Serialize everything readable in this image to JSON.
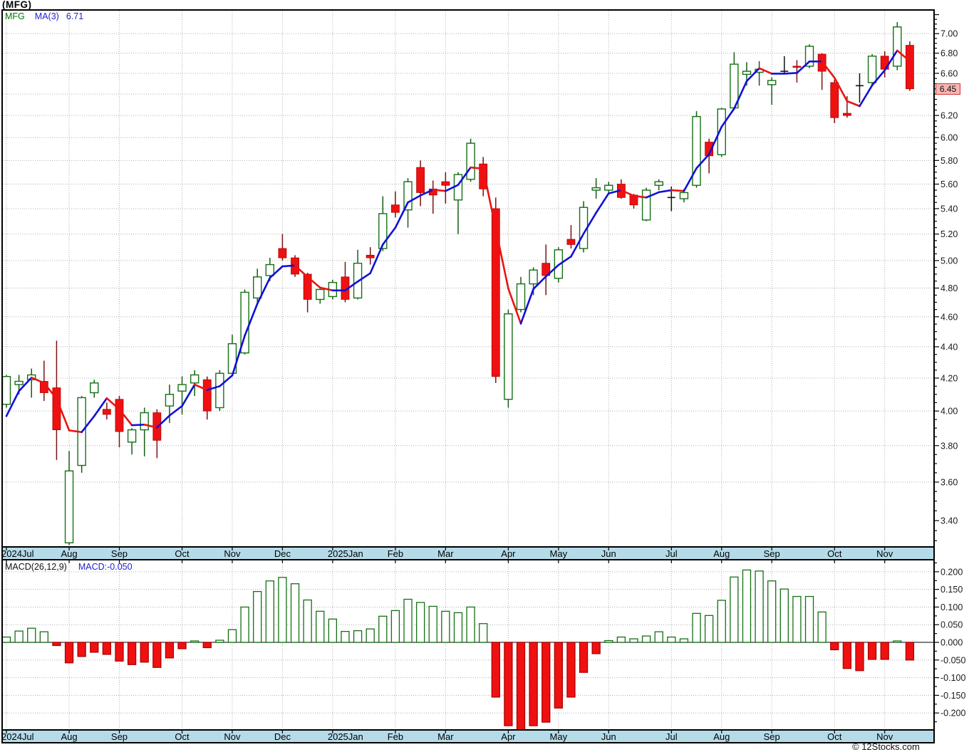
{
  "title": "(MFG)",
  "legend": {
    "symbol": "MFG",
    "ma_label": "MA(3)",
    "ma_value": "6.71"
  },
  "macd_legend": {
    "label": "MACD(26,12,9)",
    "value_label": "MACD:-0.050"
  },
  "price_axis": {
    "current_price": "6.45",
    "labels": [
      {
        "v": 7.0,
        "t": "7.00"
      },
      {
        "v": 6.8,
        "t": "6.80"
      },
      {
        "v": 6.6,
        "t": "6.60"
      },
      {
        "v": 6.2,
        "t": "6.20"
      },
      {
        "v": 6.0,
        "t": "6.00"
      },
      {
        "v": 5.8,
        "t": "5.80"
      },
      {
        "v": 5.6,
        "t": "5.60"
      },
      {
        "v": 5.4,
        "t": "5.40"
      },
      {
        "v": 5.2,
        "t": "5.20"
      },
      {
        "v": 5.0,
        "t": "5.00"
      },
      {
        "v": 4.8,
        "t": "4.80"
      },
      {
        "v": 4.6,
        "t": "4.60"
      },
      {
        "v": 4.4,
        "t": "4.40"
      },
      {
        "v": 4.2,
        "t": "4.20"
      },
      {
        "v": 4.0,
        "t": "4.00"
      },
      {
        "v": 3.8,
        "t": "3.80"
      },
      {
        "v": 3.6,
        "t": "3.60"
      },
      {
        "v": 3.4,
        "t": "3.40"
      }
    ]
  },
  "macd_axis": {
    "labels": [
      {
        "v": 0.2,
        "t": "0.200"
      },
      {
        "v": 0.15,
        "t": "0.150"
      },
      {
        "v": 0.1,
        "t": "0.100"
      },
      {
        "v": 0.05,
        "t": "0.050"
      },
      {
        "v": 0.0,
        "t": "0.000"
      },
      {
        "v": -0.05,
        "t": "-0.050"
      },
      {
        "v": -0.1,
        "t": "-0.100"
      },
      {
        "v": -0.15,
        "t": "-0.150"
      },
      {
        "v": -0.2,
        "t": "-0.200"
      }
    ]
  },
  "footer": {
    "credit": "© 12Stocks.com"
  },
  "colors": {
    "up_border": "#157015",
    "up_fill": "#ffffff",
    "wick_up": "#175c17",
    "down_fill": "#ef1111",
    "down_border": "#b00000",
    "wick_down": "#7a1212",
    "doji": "#111111",
    "ma_up": "#1010d8",
    "ma_down": "#e81414",
    "band": "#b5dbe9",
    "grid": "#b0b0b0",
    "frame": "#000000",
    "text": "#1a1a1a",
    "badge_bg": "#f6b5b3",
    "badge_border": "#cc3333",
    "zero_line": "#333333"
  },
  "chart_data": {
    "type": "candlestick+histogram",
    "timeframe": "weekly",
    "symbol": "MFG",
    "price_scale": "log",
    "price_ylim": [
      3.27,
      7.25
    ],
    "price_gridline_step": 0.2,
    "macd_ylim": [
      -0.248,
      0.234
    ],
    "macd_gridline_step": 0.05,
    "ma_period": 3,
    "ma3_seed": [
      3.97,
      4.12
    ],
    "months": [
      {
        "label": "2024Jul",
        "week": 0
      },
      {
        "label": "Aug",
        "week": 5
      },
      {
        "label": "Sep",
        "week": 9
      },
      {
        "label": "Oct",
        "week": 14
      },
      {
        "label": "Nov",
        "week": 18
      },
      {
        "label": "Dec",
        "week": 22
      },
      {
        "label": "2025Jan",
        "week": 26
      },
      {
        "label": "Feb",
        "week": 31
      },
      {
        "label": "Mar",
        "week": 35
      },
      {
        "label": "Apr",
        "week": 40
      },
      {
        "label": "May",
        "week": 44
      },
      {
        "label": "Jun",
        "week": 48
      },
      {
        "label": "Jul",
        "week": 53
      },
      {
        "label": "Aug",
        "week": 57
      },
      {
        "label": "Sep",
        "week": 61
      },
      {
        "label": "Oct",
        "week": 66
      },
      {
        "label": "Nov",
        "week": 70
      }
    ],
    "candles": [
      [
        4.04,
        4.22,
        4.02,
        4.21,
        "g"
      ],
      [
        4.16,
        4.22,
        4.1,
        4.18,
        "g"
      ],
      [
        4.19,
        4.26,
        4.08,
        4.22,
        "g"
      ],
      [
        4.18,
        4.31,
        4.06,
        4.11,
        "r"
      ],
      [
        4.14,
        4.44,
        3.72,
        3.89,
        "r"
      ],
      [
        3.29,
        3.77,
        3.28,
        3.66,
        "g"
      ],
      [
        3.69,
        4.09,
        3.65,
        4.08,
        "g"
      ],
      [
        4.11,
        4.19,
        4.08,
        4.17,
        "g"
      ],
      [
        4.01,
        4.05,
        3.95,
        3.98,
        "r"
      ],
      [
        4.07,
        4.09,
        3.79,
        3.88,
        "r"
      ],
      [
        3.82,
        3.9,
        3.75,
        3.89,
        "g"
      ],
      [
        3.89,
        4.02,
        3.74,
        3.99,
        "g"
      ],
      [
        3.99,
        4.01,
        3.73,
        3.83,
        "r"
      ],
      [
        4.03,
        4.16,
        3.93,
        4.1,
        "g"
      ],
      [
        4.12,
        4.21,
        3.98,
        4.16,
        "g"
      ],
      [
        4.17,
        4.25,
        4.09,
        4.22,
        "g"
      ],
      [
        4.19,
        4.21,
        3.95,
        4.0,
        "r"
      ],
      [
        4.02,
        4.25,
        4.0,
        4.23,
        "g"
      ],
      [
        4.23,
        4.48,
        4.22,
        4.42,
        "g"
      ],
      [
        4.36,
        4.79,
        4.35,
        4.77,
        "g"
      ],
      [
        4.73,
        4.94,
        4.7,
        4.88,
        "g"
      ],
      [
        4.89,
        5.02,
        4.85,
        4.97,
        "g"
      ],
      [
        5.09,
        5.2,
        5.0,
        5.02,
        "r"
      ],
      [
        5.02,
        5.04,
        4.88,
        4.9,
        "r"
      ],
      [
        4.9,
        4.91,
        4.63,
        4.72,
        "r"
      ],
      [
        4.72,
        4.8,
        4.69,
        4.79,
        "g"
      ],
      [
        4.74,
        4.86,
        4.72,
        4.84,
        "g"
      ],
      [
        4.88,
        4.99,
        4.7,
        4.72,
        "r"
      ],
      [
        4.73,
        5.08,
        4.72,
        4.98,
        "g"
      ],
      [
        5.04,
        5.1,
        4.97,
        5.02,
        "r"
      ],
      [
        5.09,
        5.5,
        5.07,
        5.36,
        "g"
      ],
      [
        5.43,
        5.54,
        5.33,
        5.37,
        "r"
      ],
      [
        5.39,
        5.65,
        5.25,
        5.62,
        "g"
      ],
      [
        5.74,
        5.8,
        5.42,
        5.53,
        "r"
      ],
      [
        5.56,
        5.63,
        5.36,
        5.51,
        "r"
      ],
      [
        5.62,
        5.7,
        5.44,
        5.59,
        "r"
      ],
      [
        5.47,
        5.7,
        5.2,
        5.68,
        "g"
      ],
      [
        5.64,
        5.99,
        5.62,
        5.95,
        "g"
      ],
      [
        5.77,
        5.83,
        5.5,
        5.56,
        "r"
      ],
      [
        5.4,
        5.49,
        4.17,
        4.21,
        "r"
      ],
      [
        4.07,
        4.65,
        4.02,
        4.62,
        "g"
      ],
      [
        4.65,
        4.88,
        4.63,
        4.83,
        "g"
      ],
      [
        4.83,
        4.95,
        4.75,
        4.93,
        "g"
      ],
      [
        4.98,
        5.12,
        4.75,
        4.89,
        "r"
      ],
      [
        4.87,
        5.1,
        4.84,
        5.08,
        "g"
      ],
      [
        5.16,
        5.27,
        5.09,
        5.12,
        "r"
      ],
      [
        5.09,
        5.46,
        5.06,
        5.41,
        "g"
      ],
      [
        5.55,
        5.65,
        5.48,
        5.57,
        "g"
      ],
      [
        5.55,
        5.62,
        5.53,
        5.59,
        "g"
      ],
      [
        5.6,
        5.64,
        5.48,
        5.49,
        "r"
      ],
      [
        5.51,
        5.52,
        5.4,
        5.43,
        "r"
      ],
      [
        5.31,
        5.57,
        5.3,
        5.55,
        "g"
      ],
      [
        5.59,
        5.64,
        5.55,
        5.62,
        "g"
      ],
      [
        5.5,
        5.58,
        5.38,
        5.48,
        "k"
      ],
      [
        5.48,
        5.56,
        5.45,
        5.53,
        "g"
      ],
      [
        5.59,
        6.24,
        5.57,
        6.19,
        "g"
      ],
      [
        5.96,
        5.99,
        5.69,
        5.84,
        "r"
      ],
      [
        5.85,
        6.27,
        5.83,
        6.26,
        "g"
      ],
      [
        6.27,
        6.81,
        6.25,
        6.69,
        "g"
      ],
      [
        6.59,
        6.71,
        6.48,
        6.62,
        "g"
      ],
      [
        6.61,
        6.72,
        6.48,
        6.64,
        "g"
      ],
      [
        6.49,
        6.56,
        6.3,
        6.53,
        "g"
      ],
      [
        6.62,
        6.77,
        6.59,
        6.62,
        "k"
      ],
      [
        6.67,
        6.73,
        6.51,
        6.66,
        "r"
      ],
      [
        6.67,
        6.89,
        6.65,
        6.87,
        "g"
      ],
      [
        6.79,
        6.8,
        6.44,
        6.62,
        "r"
      ],
      [
        6.51,
        6.54,
        6.13,
        6.18,
        "r"
      ],
      [
        6.22,
        6.38,
        6.18,
        6.2,
        "r"
      ],
      [
        6.48,
        6.6,
        6.32,
        6.48,
        "k"
      ],
      [
        6.51,
        6.79,
        6.49,
        6.77,
        "g"
      ],
      [
        6.77,
        6.82,
        6.56,
        6.64,
        "r"
      ],
      [
        6.67,
        7.12,
        6.63,
        7.07,
        "g"
      ],
      [
        6.88,
        6.92,
        6.43,
        6.45,
        "r"
      ]
    ],
    "macd": [
      0.015,
      0.032,
      0.04,
      0.03,
      -0.009,
      -0.058,
      -0.04,
      -0.028,
      -0.034,
      -0.053,
      -0.063,
      -0.056,
      -0.071,
      -0.044,
      -0.018,
      0.003,
      -0.015,
      0.006,
      0.036,
      0.1,
      0.144,
      0.174,
      0.184,
      0.166,
      0.12,
      0.088,
      0.066,
      0.031,
      0.033,
      0.038,
      0.074,
      0.09,
      0.122,
      0.113,
      0.102,
      0.088,
      0.084,
      0.1,
      0.053,
      -0.155,
      -0.236,
      -0.248,
      -0.236,
      -0.226,
      -0.186,
      -0.155,
      -0.085,
      -0.032,
      0.005,
      0.015,
      0.01,
      0.018,
      0.03,
      0.015,
      0.01,
      0.082,
      0.076,
      0.119,
      0.185,
      0.205,
      0.202,
      0.174,
      0.151,
      0.13,
      0.13,
      0.086,
      -0.021,
      -0.074,
      -0.08,
      -0.048,
      -0.048,
      0.002,
      -0.05
    ]
  }
}
